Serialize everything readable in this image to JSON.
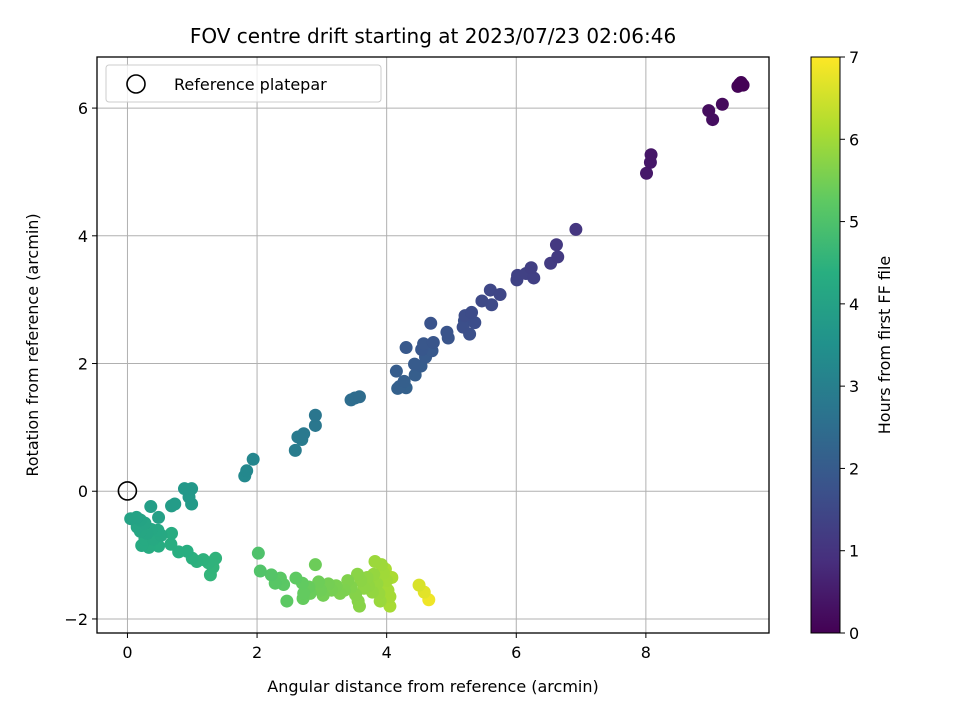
{
  "chart_data": {
    "type": "scatter",
    "title": "FOV centre drift starting at 2023/07/23 02:06:46",
    "xlabel": "Angular distance from reference (arcmin)",
    "ylabel": "Rotation from reference (arcmin)",
    "xlim": [
      -0.47,
      9.9
    ],
    "ylim": [
      -2.22,
      6.8
    ],
    "xticks": [
      0,
      2,
      4,
      6,
      8
    ],
    "yticks": [
      -2,
      0,
      2,
      4,
      6
    ],
    "grid": true,
    "legend": {
      "placement": "top-left",
      "entries": [
        "Reference platepar"
      ]
    },
    "reference_point": {
      "x": 0,
      "y": 0,
      "label": "Reference platepar"
    },
    "colorbar": {
      "label": "Hours from first FF file",
      "colormap": "viridis",
      "range": [
        0,
        7
      ],
      "ticks": [
        0,
        1,
        2,
        3,
        4,
        5,
        6,
        7
      ]
    },
    "points": [
      {
        "x": 9.45,
        "y": 6.38,
        "t": 0.02
      },
      {
        "x": 9.5,
        "y": 6.36,
        "t": 0.03
      },
      {
        "x": 9.42,
        "y": 6.34,
        "t": 0.05
      },
      {
        "x": 9.47,
        "y": 6.4,
        "t": 0.06
      },
      {
        "x": 9.18,
        "y": 6.06,
        "t": 0.18
      },
      {
        "x": 8.97,
        "y": 5.96,
        "t": 0.22
      },
      {
        "x": 9.03,
        "y": 5.82,
        "t": 0.25
      },
      {
        "x": 8.08,
        "y": 5.27,
        "t": 0.4
      },
      {
        "x": 8.07,
        "y": 5.15,
        "t": 0.42
      },
      {
        "x": 8.01,
        "y": 4.98,
        "t": 0.45
      },
      {
        "x": 6.92,
        "y": 4.1,
        "t": 1.05
      },
      {
        "x": 6.62,
        "y": 3.86,
        "t": 1.12
      },
      {
        "x": 6.64,
        "y": 3.67,
        "t": 1.15
      },
      {
        "x": 6.53,
        "y": 3.57,
        "t": 1.2
      },
      {
        "x": 6.23,
        "y": 3.5,
        "t": 1.28
      },
      {
        "x": 6.27,
        "y": 3.34,
        "t": 1.3
      },
      {
        "x": 6.15,
        "y": 3.41,
        "t": 1.33
      },
      {
        "x": 6.02,
        "y": 3.38,
        "t": 1.36
      },
      {
        "x": 6.01,
        "y": 3.31,
        "t": 1.38
      },
      {
        "x": 5.75,
        "y": 3.08,
        "t": 1.45
      },
      {
        "x": 5.6,
        "y": 3.15,
        "t": 1.48
      },
      {
        "x": 5.47,
        "y": 2.98,
        "t": 1.52
      },
      {
        "x": 5.62,
        "y": 2.92,
        "t": 1.55
      },
      {
        "x": 5.31,
        "y": 2.8,
        "t": 1.6
      },
      {
        "x": 5.21,
        "y": 2.75,
        "t": 1.63
      },
      {
        "x": 5.36,
        "y": 2.64,
        "t": 1.66
      },
      {
        "x": 5.18,
        "y": 2.57,
        "t": 1.68
      },
      {
        "x": 5.28,
        "y": 2.46,
        "t": 1.71
      },
      {
        "x": 5.2,
        "y": 2.67,
        "t": 1.73
      },
      {
        "x": 4.68,
        "y": 2.63,
        "t": 1.78
      },
      {
        "x": 4.93,
        "y": 2.49,
        "t": 1.8
      },
      {
        "x": 4.95,
        "y": 2.4,
        "t": 1.83
      },
      {
        "x": 4.72,
        "y": 2.33,
        "t": 1.86
      },
      {
        "x": 4.57,
        "y": 2.31,
        "t": 1.88
      },
      {
        "x": 4.54,
        "y": 2.22,
        "t": 1.9
      },
      {
        "x": 4.7,
        "y": 2.2,
        "t": 1.93
      },
      {
        "x": 4.3,
        "y": 2.25,
        "t": 1.95
      },
      {
        "x": 4.6,
        "y": 2.1,
        "t": 1.97
      },
      {
        "x": 4.43,
        "y": 1.99,
        "t": 2.0
      },
      {
        "x": 4.53,
        "y": 1.96,
        "t": 2.02
      },
      {
        "x": 4.15,
        "y": 1.88,
        "t": 2.05
      },
      {
        "x": 4.44,
        "y": 1.82,
        "t": 2.07
      },
      {
        "x": 4.27,
        "y": 1.72,
        "t": 2.1
      },
      {
        "x": 4.2,
        "y": 1.64,
        "t": 2.12
      },
      {
        "x": 4.3,
        "y": 1.62,
        "t": 2.15
      },
      {
        "x": 4.17,
        "y": 1.61,
        "t": 2.17
      },
      {
        "x": 3.58,
        "y": 1.48,
        "t": 2.45
      },
      {
        "x": 3.51,
        "y": 1.46,
        "t": 2.48
      },
      {
        "x": 3.45,
        "y": 1.43,
        "t": 2.5
      },
      {
        "x": 2.9,
        "y": 1.19,
        "t": 2.75
      },
      {
        "x": 2.9,
        "y": 1.03,
        "t": 2.78
      },
      {
        "x": 2.72,
        "y": 0.9,
        "t": 2.82
      },
      {
        "x": 2.63,
        "y": 0.85,
        "t": 2.85
      },
      {
        "x": 2.69,
        "y": 0.81,
        "t": 2.87
      },
      {
        "x": 2.59,
        "y": 0.64,
        "t": 2.9
      },
      {
        "x": 1.94,
        "y": 0.5,
        "t": 3.2
      },
      {
        "x": 1.84,
        "y": 0.32,
        "t": 3.25
      },
      {
        "x": 1.81,
        "y": 0.24,
        "t": 3.28
      },
      {
        "x": 0.88,
        "y": 0.04,
        "t": 3.7
      },
      {
        "x": 0.99,
        "y": 0.04,
        "t": 3.72
      },
      {
        "x": 0.95,
        "y": -0.09,
        "t": 3.75
      },
      {
        "x": 0.99,
        "y": -0.2,
        "t": 3.78
      },
      {
        "x": 0.73,
        "y": -0.2,
        "t": 3.82
      },
      {
        "x": 0.68,
        "y": -0.23,
        "t": 3.84
      },
      {
        "x": 0.36,
        "y": -0.24,
        "t": 3.9
      },
      {
        "x": 0.48,
        "y": -0.41,
        "t": 3.95
      },
      {
        "x": 0.05,
        "y": -0.43,
        "t": 4.0
      },
      {
        "x": 0.14,
        "y": -0.41,
        "t": 4.02
      },
      {
        "x": 0.2,
        "y": -0.45,
        "t": 4.05
      },
      {
        "x": 0.27,
        "y": -0.5,
        "t": 4.08
      },
      {
        "x": 0.15,
        "y": -0.56,
        "t": 4.1
      },
      {
        "x": 0.2,
        "y": -0.63,
        "t": 4.12
      },
      {
        "x": 0.3,
        "y": -0.66,
        "t": 4.14
      },
      {
        "x": 0.37,
        "y": -0.6,
        "t": 4.16
      },
      {
        "x": 0.47,
        "y": -0.61,
        "t": 4.18
      },
      {
        "x": 0.52,
        "y": -0.69,
        "t": 4.2
      },
      {
        "x": 0.4,
        "y": -0.75,
        "t": 4.22
      },
      {
        "x": 0.27,
        "y": -0.75,
        "t": 4.24
      },
      {
        "x": 0.22,
        "y": -0.85,
        "t": 4.26
      },
      {
        "x": 0.33,
        "y": -0.88,
        "t": 4.28
      },
      {
        "x": 0.48,
        "y": -0.86,
        "t": 4.3
      },
      {
        "x": 0.68,
        "y": -0.66,
        "t": 4.32
      },
      {
        "x": 0.67,
        "y": -0.83,
        "t": 4.34
      },
      {
        "x": 0.79,
        "y": -0.95,
        "t": 4.36
      },
      {
        "x": 0.92,
        "y": -0.94,
        "t": 4.38
      },
      {
        "x": 1.0,
        "y": -1.05,
        "t": 4.42
      },
      {
        "x": 1.07,
        "y": -1.1,
        "t": 4.45
      },
      {
        "x": 1.17,
        "y": -1.07,
        "t": 4.48
      },
      {
        "x": 1.25,
        "y": -1.12,
        "t": 4.5
      },
      {
        "x": 1.36,
        "y": -1.05,
        "t": 4.52
      },
      {
        "x": 1.32,
        "y": -1.19,
        "t": 4.54
      },
      {
        "x": 1.28,
        "y": -1.31,
        "t": 4.56
      },
      {
        "x": 2.02,
        "y": -0.97,
        "t": 5.0
      },
      {
        "x": 2.05,
        "y": -1.25,
        "t": 5.05
      },
      {
        "x": 2.22,
        "y": -1.31,
        "t": 5.1
      },
      {
        "x": 2.28,
        "y": -1.44,
        "t": 5.15
      },
      {
        "x": 2.36,
        "y": -1.36,
        "t": 5.18
      },
      {
        "x": 2.41,
        "y": -1.46,
        "t": 5.2
      },
      {
        "x": 2.46,
        "y": -1.72,
        "t": 5.22
      },
      {
        "x": 2.6,
        "y": -1.36,
        "t": 5.25
      },
      {
        "x": 2.7,
        "y": -1.44,
        "t": 5.28
      },
      {
        "x": 2.72,
        "y": -1.6,
        "t": 5.3
      },
      {
        "x": 2.71,
        "y": -1.68,
        "t": 5.32
      },
      {
        "x": 2.8,
        "y": -1.5,
        "t": 5.35
      },
      {
        "x": 2.82,
        "y": -1.6,
        "t": 5.38
      },
      {
        "x": 2.9,
        "y": -1.15,
        "t": 5.4
      },
      {
        "x": 2.95,
        "y": -1.42,
        "t": 5.43
      },
      {
        "x": 2.98,
        "y": -1.55,
        "t": 5.45
      },
      {
        "x": 3.02,
        "y": -1.63,
        "t": 5.48
      },
      {
        "x": 3.1,
        "y": -1.45,
        "t": 5.5
      },
      {
        "x": 3.15,
        "y": -1.55,
        "t": 5.53
      },
      {
        "x": 3.22,
        "y": -1.48,
        "t": 5.55
      },
      {
        "x": 3.28,
        "y": -1.6,
        "t": 5.58
      },
      {
        "x": 3.35,
        "y": -1.55,
        "t": 5.6
      },
      {
        "x": 3.4,
        "y": -1.4,
        "t": 5.63
      },
      {
        "x": 3.45,
        "y": -1.5,
        "t": 5.65
      },
      {
        "x": 3.52,
        "y": -1.62,
        "t": 5.68
      },
      {
        "x": 3.56,
        "y": -1.72,
        "t": 5.7
      },
      {
        "x": 3.58,
        "y": -1.8,
        "t": 5.72
      },
      {
        "x": 3.55,
        "y": -1.3,
        "t": 5.74
      },
      {
        "x": 3.6,
        "y": -1.4,
        "t": 5.76
      },
      {
        "x": 3.65,
        "y": -1.52,
        "t": 5.78
      },
      {
        "x": 3.7,
        "y": -1.35,
        "t": 5.8
      },
      {
        "x": 3.72,
        "y": -1.48,
        "t": 5.82
      },
      {
        "x": 3.78,
        "y": -1.58,
        "t": 5.84
      },
      {
        "x": 3.8,
        "y": -1.3,
        "t": 5.86
      },
      {
        "x": 3.85,
        "y": -1.45,
        "t": 5.88
      },
      {
        "x": 3.88,
        "y": -1.6,
        "t": 5.9
      },
      {
        "x": 3.9,
        "y": -1.72,
        "t": 5.92
      },
      {
        "x": 3.82,
        "y": -1.1,
        "t": 5.94
      },
      {
        "x": 3.92,
        "y": -1.15,
        "t": 5.96
      },
      {
        "x": 3.95,
        "y": -1.28,
        "t": 5.98
      },
      {
        "x": 4.0,
        "y": -1.4,
        "t": 6.0
      },
      {
        "x": 4.02,
        "y": -1.55,
        "t": 6.02
      },
      {
        "x": 4.05,
        "y": -1.65,
        "t": 6.04
      },
      {
        "x": 4.05,
        "y": -1.8,
        "t": 6.06
      },
      {
        "x": 3.98,
        "y": -1.22,
        "t": 6.08
      },
      {
        "x": 4.08,
        "y": -1.35,
        "t": 6.1
      },
      {
        "x": 4.5,
        "y": -1.47,
        "t": 6.6
      },
      {
        "x": 4.58,
        "y": -1.58,
        "t": 6.7
      },
      {
        "x": 4.65,
        "y": -1.7,
        "t": 6.85
      }
    ]
  }
}
